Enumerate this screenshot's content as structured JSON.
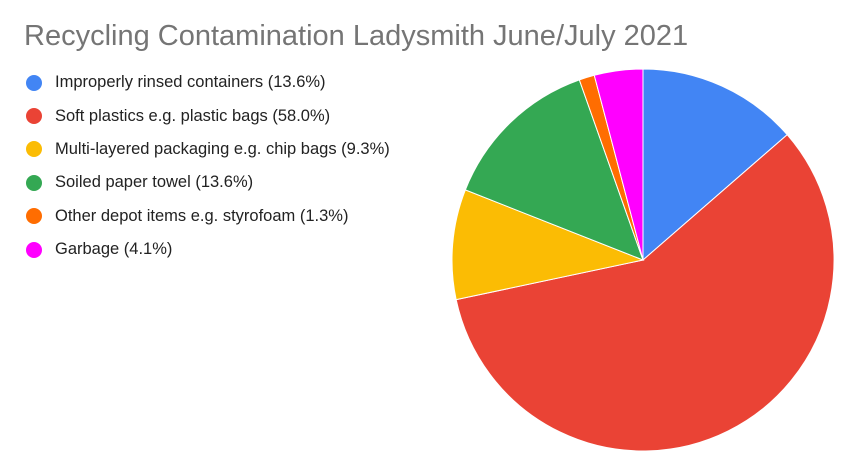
{
  "chart_data": {
    "type": "pie",
    "title": "Recycling Contamination Ladysmith June/July 2021",
    "legend_position": "left",
    "slices": [
      {
        "label": "Improperly rinsed containers (13.6%)",
        "name": "Improperly rinsed containers",
        "value": 13.6,
        "color": "#4285f4"
      },
      {
        "label": "Soft plastics e.g. plastic bags (58.0%)",
        "name": "Soft plastics e.g. plastic bags",
        "value": 58.0,
        "color": "#ea4335"
      },
      {
        "label": "Multi-layered packaging e.g. chip bags (9.3%)",
        "name": "Multi-layered packaging e.g. chip bags",
        "value": 9.3,
        "color": "#fbbc04"
      },
      {
        "label": "Soiled paper towel (13.6%)",
        "name": "Soiled paper towel",
        "value": 13.6,
        "color": "#34a853"
      },
      {
        "label": "Other depot items e.g. styrofoam (1.3%)",
        "name": "Other depot items e.g. styrofoam",
        "value": 1.3,
        "color": "#ff6d01"
      },
      {
        "label": "Garbage (4.1%)",
        "name": "Garbage",
        "value": 4.1,
        "color": "#ff00ff"
      }
    ]
  }
}
